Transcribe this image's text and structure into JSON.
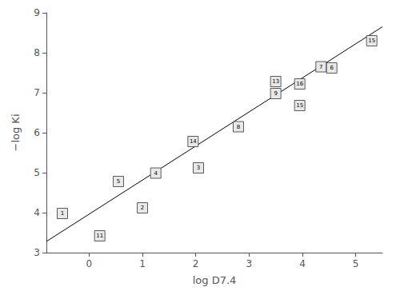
{
  "chart_data": {
    "type": "scatter",
    "xlabel": "log D7.4",
    "ylabel": "−log Ki",
    "xlim": [
      -0.8,
      5.5
    ],
    "ylim": [
      3.0,
      9.0
    ],
    "xticks": [
      0,
      1,
      2,
      3,
      4,
      5
    ],
    "yticks": [
      3,
      4,
      5,
      6,
      7,
      8,
      9
    ],
    "grid": false,
    "series": [
      {
        "type": "line",
        "x": [
          -0.8,
          5.5
        ],
        "values": [
          3.28,
          8.65
        ],
        "color": "#000000",
        "line_style": "solid"
      },
      {
        "type": "scatter",
        "marker": "square",
        "color": "#e8e8e8",
        "x": [
          -0.5,
          0.2,
          0.55,
          1.0,
          1.25,
          1.95,
          2.05,
          2.8,
          3.5,
          3.5,
          3.95,
          3.95,
          4.35,
          4.55,
          5.3
        ],
        "values": [
          3.98,
          3.42,
          4.78,
          4.12,
          4.99,
          5.78,
          5.12,
          6.15,
          7.28,
          6.98,
          7.22,
          6.68,
          7.65,
          7.62,
          8.3
        ],
        "labels": [
          "1",
          "11",
          "5",
          "2",
          "4",
          "14",
          "3",
          "8",
          "13",
          "9",
          "16",
          "15",
          "7",
          "6",
          "15"
        ]
      }
    ]
  }
}
